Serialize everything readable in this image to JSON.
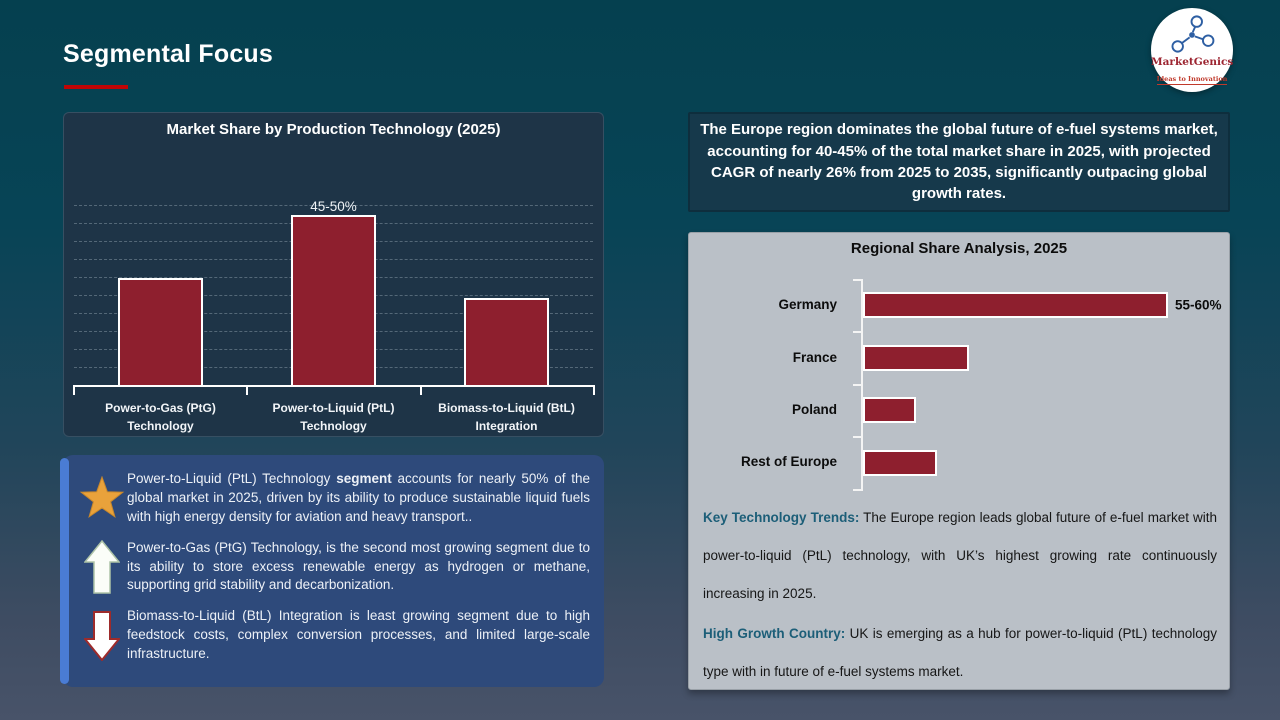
{
  "header": {
    "title": "Segmental Focus"
  },
  "logo": {
    "name": "MarketGenics",
    "tagline": "Ideas to Innovation"
  },
  "europe_callout": {
    "text": "The Europe region dominates the global future of e-fuel systems market, accounting for 40-45% of the total market share in 2025, with projected CAGR of nearly 26% from 2025 to 2035, significantly outpacing global growth rates."
  },
  "insights": {
    "items": [
      {
        "icon": "star-icon",
        "pre": "Power-to-Liquid (PtL) Technology ",
        "bold": "segment",
        "post": " accounts for nearly 50% of the global market in 2025, driven by its ability to produce sustainable liquid fuels with high energy density for aviation and heavy transport.."
      },
      {
        "icon": "arrow-up-icon",
        "pre": "Power-to-Gas (PtG) Technology, is the second most growing segment due to its ability to store excess renewable energy as hydrogen or methane, supporting grid stability and decarbonization.",
        "bold": "",
        "post": ""
      },
      {
        "icon": "arrow-down-icon",
        "pre": "Biomass-to-Liquid (BtL) Integration is least growing segment due to high feedstock costs, complex conversion processes, and limited large-scale infrastructure.",
        "bold": "",
        "post": ""
      }
    ]
  },
  "regional_panel": {
    "trends": {
      "label": "Key Technology Trends:",
      "text": " The Europe region leads global future of e-fuel market with power-to-liquid (PtL) technology, with UK’s highest growing rate continuously increasing in 2025."
    },
    "high_growth": {
      "label": "High Growth Country:",
      "text": " UK is emerging as a hub for power-to-liquid (PtL) technology type with in future of e-fuel systems market."
    }
  },
  "chart_data": [
    {
      "type": "bar",
      "title": "Market Share by Production Technology (2025)",
      "categories": [
        "Power-to-Gas (PtG)\nTechnology",
        "Power-to-Liquid (PtL)\nTechnology",
        "Biomass-to-Liquid (BtL)\nIntegration"
      ],
      "values": [
        30,
        47.5,
        24.5
      ],
      "data_labels": [
        "",
        "45-50%",
        ""
      ],
      "unit": "%",
      "ylim": [
        0,
        50
      ],
      "grid": "dashed-horizontal",
      "bar_color": "#8E1F2E",
      "bar_border": "#FFFFFF"
    },
    {
      "type": "bar-horizontal",
      "title": "Regional Share Analysis, 2025",
      "categories": [
        "Germany",
        "France",
        "Poland",
        "Rest of Europe"
      ],
      "values": [
        57.5,
        20,
        10,
        14
      ],
      "data_labels": [
        "55-60%",
        "",
        "",
        ""
      ],
      "unit": "%",
      "xlim": [
        0,
        60
      ],
      "grid": "off",
      "bar_color": "#8E1F2E",
      "bar_border": "#FFFFFF"
    }
  ],
  "colors": {
    "title_rule_red": "#C00505",
    "bar_maroon": "#8E1F2E",
    "insight_panel_blue": "#2E4A7B",
    "insight_accent_blue": "#4A7CD4",
    "teal_heading": "#1C5E78",
    "callout_bg": "#16394B",
    "gray_panel_bg": "#BAC0C7",
    "star_gold": "#E9A23B"
  }
}
